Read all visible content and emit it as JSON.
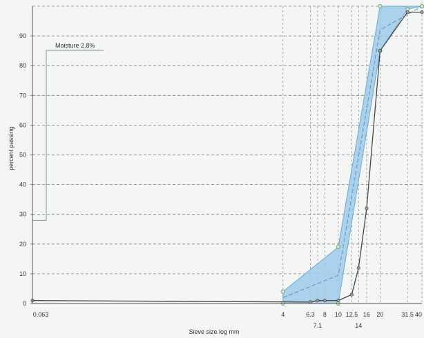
{
  "chart_data": {
    "type": "line",
    "xlabel": "Sieve size log mm",
    "ylabel": "percent passing",
    "x_scale": "log",
    "xlim": [
      0.063,
      40
    ],
    "ylim": [
      0,
      100
    ],
    "grid": true,
    "x_ticks": [
      {
        "value": 0.063,
        "label": "0.063",
        "row": 0
      },
      {
        "value": 4,
        "label": "4",
        "row": 0
      },
      {
        "value": 6.3,
        "label": "6.3",
        "row": 0
      },
      {
        "value": 7.1,
        "label": "7.1",
        "row": 1
      },
      {
        "value": 8,
        "label": "8",
        "row": 0
      },
      {
        "value": 10,
        "label": "10",
        "row": 0
      },
      {
        "value": 12.5,
        "label": "12.5",
        "row": 0
      },
      {
        "value": 14,
        "label": "14",
        "row": 1
      },
      {
        "value": 16,
        "label": "16",
        "row": 0
      },
      {
        "value": 20,
        "label": "20",
        "row": 0
      },
      {
        "value": 31.5,
        "label": "31.5",
        "row": 0
      },
      {
        "value": 40,
        "label": "40",
        "row": 0
      }
    ],
    "y_ticks": [
      0,
      10,
      20,
      30,
      40,
      50,
      60,
      70,
      80,
      90
    ],
    "envelope": {
      "upper": [
        [
          4,
          4
        ],
        [
          10,
          19
        ],
        [
          20,
          100
        ],
        [
          40,
          100
        ]
      ],
      "lower": [
        [
          4,
          0
        ],
        [
          10,
          0
        ],
        [
          20,
          85
        ],
        [
          31.5,
          99
        ],
        [
          40,
          100
        ]
      ],
      "color": "#9ccbeb"
    },
    "series": [
      {
        "values": [
          [
            0.063,
            1
          ],
          [
            6.3,
            0.5
          ],
          [
            7.1,
            1
          ],
          [
            8,
            1
          ],
          [
            10,
            1
          ],
          [
            12.5,
            3
          ],
          [
            14,
            12
          ],
          [
            16,
            32
          ],
          [
            20,
            85
          ],
          [
            31.5,
            98
          ],
          [
            40,
            98
          ]
        ],
        "color": "#444444"
      }
    ],
    "moisture_label": "Moisture 2.8%",
    "moisture_level": 28
  }
}
